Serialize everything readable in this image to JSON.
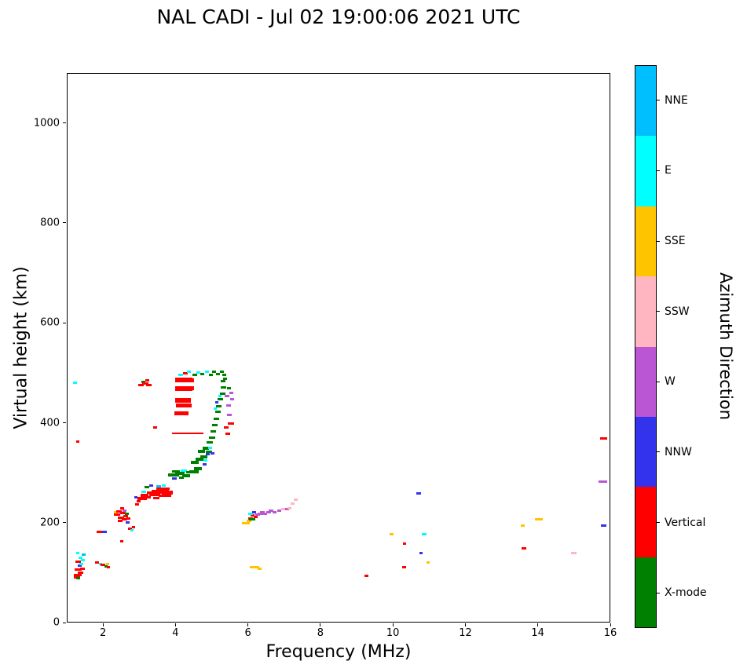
{
  "chart_data": {
    "type": "scatter",
    "title": "NAL CADI - Jul 02 19:00:06 2021 UTC",
    "xlabel": "Frequency (MHz)",
    "ylabel": "Virtual height (km)",
    "colorbar_label": "Azimuth Direction",
    "xlim": [
      1,
      16
    ],
    "ylim": [
      0,
      1100
    ],
    "xticks": [
      2,
      4,
      6,
      8,
      10,
      12,
      14,
      16
    ],
    "yticks": [
      0,
      200,
      400,
      600,
      800,
      1000
    ],
    "grid": false,
    "legend_position": "right-colorbar",
    "legend": [
      {
        "label": "NNE",
        "color": "#00BFFF"
      },
      {
        "label": "E",
        "color": "#00FFFF"
      },
      {
        "label": "SSE",
        "color": "#FFC400"
      },
      {
        "label": "SSW",
        "color": "#FFB6C1"
      },
      {
        "label": "W",
        "color": "#BA55D3"
      },
      {
        "label": "NNW",
        "color": "#3333EE"
      },
      {
        "label": "Vertical",
        "color": "#FF0000"
      },
      {
        "label": "X-mode",
        "color": "#008000"
      }
    ],
    "points_format": "[frequency_MHz, virtual_height_km, legend_index, width_px_optional, height_px_optional]",
    "points": [
      [
        1.25,
        92,
        6,
        8
      ],
      [
        1.3,
        90,
        7,
        5
      ],
      [
        1.28,
        97,
        6,
        10
      ],
      [
        1.35,
        101,
        6,
        7
      ],
      [
        1.3,
        108,
        6,
        9
      ],
      [
        1.42,
        110,
        6,
        6
      ],
      [
        1.33,
        116,
        5,
        5
      ],
      [
        1.38,
        118,
        1,
        5
      ],
      [
        1.3,
        124,
        6,
        7
      ],
      [
        1.42,
        126,
        1,
        5
      ],
      [
        1.36,
        131,
        1,
        5
      ],
      [
        1.45,
        137,
        0,
        5
      ],
      [
        1.28,
        140,
        1,
        4
      ],
      [
        1.2,
        482,
        1,
        5
      ],
      [
        1.28,
        364,
        6,
        4
      ],
      [
        1.82,
        122,
        6,
        5
      ],
      [
        1.9,
        118,
        1,
        4
      ],
      [
        1.87,
        183,
        6,
        7
      ],
      [
        2.02,
        183,
        5,
        6
      ],
      [
        1.97,
        117,
        6,
        6
      ],
      [
        2.06,
        114,
        7,
        4
      ],
      [
        2.12,
        112,
        6,
        4
      ],
      [
        2.1,
        118,
        2,
        4
      ],
      [
        2.33,
        222,
        2,
        5
      ],
      [
        2.37,
        218,
        6,
        8
      ],
      [
        2.42,
        224,
        6,
        7
      ],
      [
        2.47,
        212,
        6,
        8
      ],
      [
        2.52,
        221,
        6,
        7
      ],
      [
        2.56,
        208,
        6,
        7
      ],
      [
        2.45,
        205,
        6,
        6
      ],
      [
        2.6,
        215,
        6,
        6
      ],
      [
        2.63,
        220,
        7,
        5
      ],
      [
        2.58,
        226,
        4,
        5
      ],
      [
        2.5,
        230,
        6,
        5
      ],
      [
        2.68,
        210,
        6,
        5
      ],
      [
        2.65,
        202,
        5,
        5
      ],
      [
        2.5,
        165,
        6,
        4
      ],
      [
        2.72,
        190,
        6,
        5
      ],
      [
        2.78,
        187,
        1,
        4
      ],
      [
        2.82,
        192,
        6,
        4
      ],
      [
        2.88,
        253,
        5,
        4
      ],
      [
        2.92,
        238,
        6,
        5
      ],
      [
        2.97,
        244,
        6,
        5
      ],
      [
        3.02,
        477,
        6,
        7
      ],
      [
        3.1,
        483,
        7,
        5
      ],
      [
        3.15,
        480,
        6,
        8
      ],
      [
        3.25,
        477,
        6,
        7
      ],
      [
        3.2,
        486,
        6,
        5
      ],
      [
        3.42,
        392,
        6,
        5
      ],
      [
        3.06,
        250,
        6,
        12,
        4
      ],
      [
        3.12,
        257,
        6,
        10,
        4
      ],
      [
        3.2,
        253,
        6,
        9
      ],
      [
        3.1,
        263,
        1,
        6
      ],
      [
        3.18,
        272,
        7,
        6
      ],
      [
        3.3,
        276,
        5,
        5
      ],
      [
        3.28,
        262,
        6,
        9
      ],
      [
        3.4,
        258,
        6,
        14,
        4
      ],
      [
        3.5,
        263,
        6,
        16,
        5
      ],
      [
        3.62,
        266,
        6,
        16,
        5
      ],
      [
        3.75,
        262,
        6,
        14,
        5
      ],
      [
        3.55,
        270,
        6,
        10
      ],
      [
        3.7,
        270,
        6,
        10
      ],
      [
        3.45,
        251,
        6,
        8
      ],
      [
        3.6,
        255,
        6,
        8
      ],
      [
        3.78,
        255,
        6,
        8
      ],
      [
        3.52,
        275,
        0,
        6
      ],
      [
        3.66,
        276,
        1,
        5
      ],
      [
        3.92,
        297,
        7,
        14,
        4
      ],
      [
        4.1,
        300,
        7,
        12,
        4
      ],
      [
        4.28,
        295,
        7,
        10,
        4
      ],
      [
        4.0,
        304,
        7,
        10
      ],
      [
        4.2,
        305,
        1,
        8
      ],
      [
        4.35,
        302,
        7,
        8
      ],
      [
        3.95,
        290,
        5,
        6
      ],
      [
        4.15,
        291,
        7,
        6
      ],
      [
        4.2,
        487,
        6,
        22,
        6
      ],
      [
        4.2,
        470,
        6,
        22,
        6
      ],
      [
        4.18,
        447,
        6,
        20,
        6
      ],
      [
        4.2,
        436,
        6,
        20,
        5
      ],
      [
        4.15,
        420,
        6,
        18,
        5
      ],
      [
        4.4,
        487,
        6,
        8,
        5
      ],
      [
        4.4,
        470,
        6,
        8,
        5
      ],
      [
        4.1,
        380,
        6,
        20,
        2
      ],
      [
        4.35,
        380,
        6,
        16,
        2
      ],
      [
        4.6,
        380,
        6,
        14,
        2
      ],
      [
        4.12,
        498,
        1,
        6
      ],
      [
        4.25,
        500,
        6,
        6
      ],
      [
        4.35,
        503,
        1,
        5
      ],
      [
        4.5,
        498,
        7,
        6
      ],
      [
        4.6,
        502,
        1,
        5
      ],
      [
        4.72,
        499,
        7,
        5
      ],
      [
        4.85,
        503,
        1,
        5
      ],
      [
        4.95,
        498,
        7,
        5
      ],
      [
        5.05,
        503,
        7,
        5
      ],
      [
        5.15,
        499,
        7,
        5
      ],
      [
        5.25,
        503,
        7,
        5
      ],
      [
        5.32,
        497,
        7,
        5
      ],
      [
        4.48,
        304,
        7,
        12,
        4
      ],
      [
        4.6,
        309,
        7,
        10,
        4
      ],
      [
        4.52,
        322,
        7,
        10,
        4
      ],
      [
        4.65,
        328,
        7,
        10,
        4
      ],
      [
        4.75,
        334,
        7,
        9,
        4
      ],
      [
        4.7,
        345,
        7,
        9,
        4
      ],
      [
        4.82,
        350,
        7,
        8,
        4
      ],
      [
        4.9,
        344,
        7,
        8
      ],
      [
        4.92,
        363,
        7,
        8
      ],
      [
        4.98,
        372,
        7,
        8
      ],
      [
        5.02,
        385,
        7,
        7
      ],
      [
        5.06,
        397,
        7,
        7
      ],
      [
        5.1,
        410,
        7,
        7
      ],
      [
        5.14,
        423,
        7,
        7
      ],
      [
        5.18,
        435,
        7,
        7
      ],
      [
        5.22,
        448,
        7,
        7
      ],
      [
        5.27,
        460,
        7,
        7
      ],
      [
        5.3,
        472,
        7,
        7
      ],
      [
        5.29,
        485,
        7,
        6
      ],
      [
        4.8,
        326,
        1,
        5
      ],
      [
        4.94,
        352,
        1,
        5
      ],
      [
        5.0,
        340,
        5,
        5
      ],
      [
        4.86,
        338,
        5,
        5
      ],
      [
        5.08,
        430,
        1,
        4
      ],
      [
        5.2,
        455,
        1,
        4
      ],
      [
        4.78,
        318,
        5,
        5
      ],
      [
        5.12,
        442,
        5,
        4
      ],
      [
        5.4,
        455,
        4,
        6
      ],
      [
        5.44,
        436,
        4,
        6
      ],
      [
        5.47,
        417,
        4,
        6
      ],
      [
        5.5,
        400,
        6,
        8
      ],
      [
        5.38,
        392,
        6,
        6
      ],
      [
        5.42,
        380,
        6,
        6
      ],
      [
        5.55,
        449,
        4,
        5
      ],
      [
        5.52,
        462,
        4,
        5
      ],
      [
        5.45,
        470,
        7,
        5
      ],
      [
        5.35,
        490,
        7,
        5
      ],
      [
        5.92,
        200,
        2,
        10,
        3
      ],
      [
        6.0,
        205,
        2,
        6
      ],
      [
        6.05,
        210,
        6,
        6
      ],
      [
        6.1,
        216,
        6,
        5
      ],
      [
        6.05,
        219,
        1,
        6
      ],
      [
        6.15,
        222,
        5,
        5
      ],
      [
        6.1,
        208,
        7,
        8,
        3
      ],
      [
        6.2,
        213,
        6,
        5
      ],
      [
        6.25,
        218,
        4,
        6
      ],
      [
        6.3,
        220,
        4,
        6
      ],
      [
        6.38,
        222,
        4,
        6
      ],
      [
        6.45,
        220,
        4,
        6
      ],
      [
        6.55,
        222,
        4,
        6
      ],
      [
        6.62,
        225,
        4,
        6
      ],
      [
        6.72,
        222,
        4,
        5
      ],
      [
        6.85,
        225,
        4,
        5
      ],
      [
        6.95,
        228,
        3,
        5
      ],
      [
        7.05,
        228,
        4,
        5
      ],
      [
        7.12,
        231,
        3,
        5
      ],
      [
        7.2,
        240,
        3,
        5
      ],
      [
        7.3,
        247,
        3,
        5
      ],
      [
        6.15,
        112,
        2,
        12,
        3
      ],
      [
        6.3,
        110,
        2,
        5
      ],
      [
        9.25,
        95,
        6,
        5
      ],
      [
        9.95,
        178,
        2,
        5
      ],
      [
        10.3,
        160,
        6,
        4
      ],
      [
        10.28,
        112,
        6,
        5
      ],
      [
        10.68,
        260,
        5,
        6
      ],
      [
        10.85,
        178,
        1,
        6
      ],
      [
        10.75,
        140,
        5,
        4
      ],
      [
        10.95,
        122,
        2,
        4
      ],
      [
        13.55,
        195,
        2,
        5
      ],
      [
        13.6,
        150,
        6,
        6
      ],
      [
        14.0,
        209,
        2,
        10,
        3
      ],
      [
        14.98,
        140,
        3,
        7
      ],
      [
        15.8,
        370,
        6,
        9,
        3
      ],
      [
        15.78,
        283,
        4,
        11,
        3
      ],
      [
        15.8,
        196,
        5,
        7
      ]
    ]
  }
}
